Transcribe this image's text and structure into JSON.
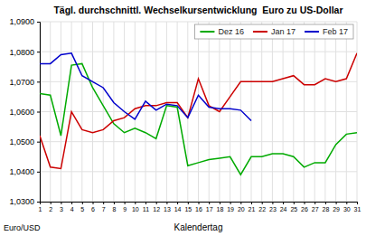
{
  "chart_data": {
    "type": "line",
    "title": "Tägl. durchschnittl. Wechselkursentwicklung  Euro zu US-Dollar",
    "xlabel": "Kalendertag",
    "ylabel": "Euro/USD",
    "x": [
      1,
      2,
      3,
      4,
      5,
      6,
      7,
      8,
      9,
      10,
      11,
      12,
      13,
      14,
      15,
      16,
      17,
      18,
      19,
      20,
      21,
      22,
      23,
      24,
      25,
      26,
      27,
      28,
      29,
      30,
      31
    ],
    "xlim": [
      1,
      31
    ],
    "xticks": [
      1,
      2,
      3,
      4,
      5,
      6,
      7,
      8,
      9,
      10,
      11,
      12,
      13,
      14,
      15,
      16,
      17,
      18,
      19,
      20,
      21,
      22,
      23,
      24,
      25,
      26,
      27,
      28,
      29,
      30,
      31
    ],
    "ylim": [
      1.03,
      1.09
    ],
    "yticks": [
      {
        "value": 1.03,
        "label": "1,0300"
      },
      {
        "value": 1.04,
        "label": "1,0400"
      },
      {
        "value": 1.05,
        "label": "1,0500"
      },
      {
        "value": 1.06,
        "label": "1,0600"
      },
      {
        "value": 1.07,
        "label": "1,0700"
      },
      {
        "value": 1.08,
        "label": "1,0800"
      },
      {
        "value": 1.09,
        "label": "1,0900"
      }
    ],
    "grid": true,
    "legend": "upper right",
    "series": [
      {
        "name": "Dez 16",
        "color": "#00AA00",
        "values": [
          1.066,
          1.0655,
          1.052,
          1.0755,
          1.076,
          1.068,
          1.062,
          1.056,
          1.053,
          1.0545,
          1.053,
          1.051,
          1.062,
          1.0615,
          1.042,
          1.043,
          1.044,
          1.0445,
          1.045,
          1.039,
          1.045,
          1.045,
          1.046,
          1.046,
          1.045,
          1.0415,
          1.043,
          1.043,
          1.049,
          1.0525,
          1.053
        ]
      },
      {
        "name": "Jan 17",
        "color": "#CC0000",
        "values": [
          1.052,
          1.0415,
          1.041,
          1.06,
          1.054,
          1.053,
          1.054,
          1.057,
          1.058,
          1.061,
          1.062,
          1.062,
          1.063,
          1.063,
          1.058,
          1.071,
          1.062,
          1.06,
          1.065,
          1.07,
          1.07,
          1.07,
          1.07,
          1.071,
          1.072,
          1.069,
          1.069,
          1.071,
          1.07,
          1.071,
          1.0795
        ]
      },
      {
        "name": "Feb 17",
        "color": "#0000CC",
        "values": [
          1.076,
          1.076,
          1.079,
          1.0795,
          1.072,
          1.07,
          1.068,
          1.063,
          1.06,
          1.0575,
          1.0635,
          1.0605,
          1.0625,
          1.062,
          1.058,
          1.0655,
          1.0615,
          1.061,
          1.061,
          1.0605,
          1.057,
          null,
          null,
          null,
          null,
          null,
          null,
          null,
          null,
          null,
          null
        ]
      }
    ]
  }
}
